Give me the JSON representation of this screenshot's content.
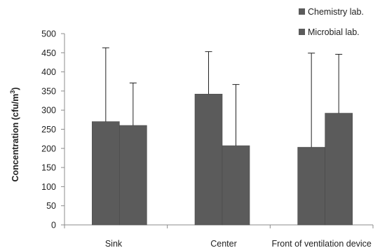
{
  "chart_data": {
    "type": "bar",
    "title": "",
    "xlabel": "",
    "ylabel": {
      "main": "Concentration  (cfu/m",
      "superscript": "3",
      "tail": ")"
    },
    "categories": [
      "Sink",
      "Center",
      "Front of ventilation  device"
    ],
    "ylim": [
      0,
      500
    ],
    "yticks": [
      0,
      50,
      100,
      150,
      200,
      250,
      300,
      350,
      400,
      450,
      500
    ],
    "grid": false,
    "legend_position": "top-right",
    "series": [
      {
        "name": "Chemistry lab.",
        "color": "#5b5b5b",
        "values": [
          270,
          342,
          203
        ],
        "error_upper": [
          463,
          453,
          449
        ]
      },
      {
        "name": "Microbial lab.",
        "color": "#5b5b5b",
        "values": [
          260,
          207,
          292
        ],
        "error_upper": [
          371,
          367,
          446
        ]
      }
    ]
  }
}
